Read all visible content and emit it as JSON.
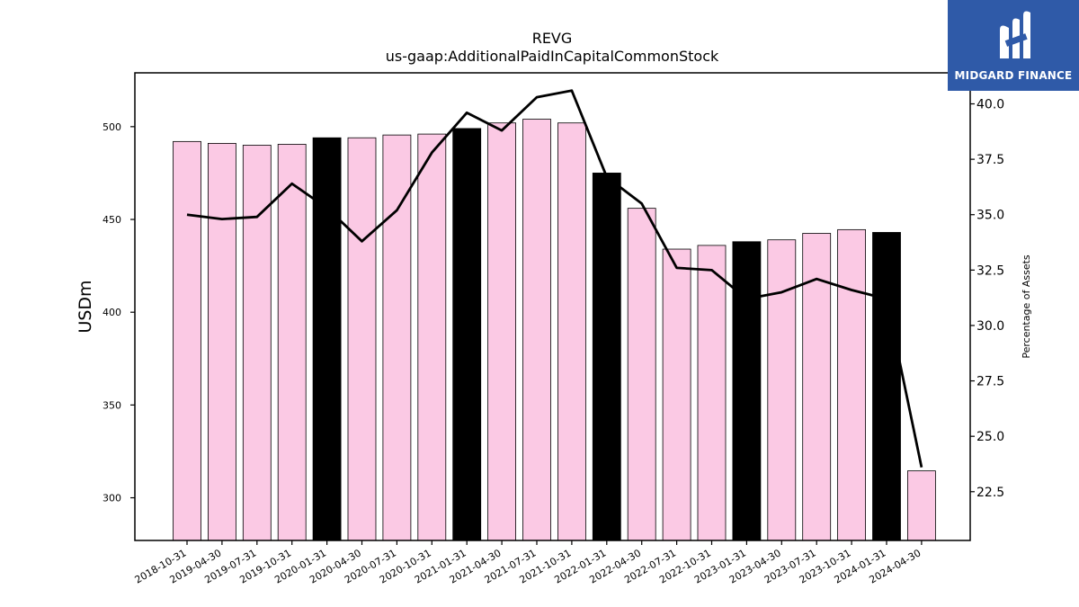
{
  "logo": {
    "text": "MIDGARD FINANCE",
    "background": "#2f5aa8"
  },
  "chart_data": {
    "type": "bar",
    "title": "REVG",
    "subtitle": "us-gaap:AdditionalPaidInCapitalCommonStock",
    "ylabel": "USDm",
    "y2label": "Percentage of Assets",
    "ylim": [
      277,
      529
    ],
    "y2lim": [
      20.3,
      41.4
    ],
    "yticks": [
      300,
      350,
      400,
      450,
      500
    ],
    "y2ticks": [
      22.5,
      25.0,
      27.5,
      30.0,
      32.5,
      35.0,
      37.5,
      40.0
    ],
    "categories": [
      "2018-10-31",
      "2019-04-30",
      "2019-07-31",
      "2019-10-31",
      "2020-01-31",
      "2020-04-30",
      "2020-07-31",
      "2020-10-31",
      "2021-01-31",
      "2021-04-30",
      "2021-07-31",
      "2021-10-31",
      "2022-01-31",
      "2022-04-30",
      "2022-07-31",
      "2022-10-31",
      "2023-01-31",
      "2023-04-30",
      "2023-07-31",
      "2023-10-31",
      "2024-01-31",
      "2024-04-30"
    ],
    "series": [
      {
        "values": [
          492,
          491,
          490,
          490.5,
          494,
          494,
          495.5,
          496,
          499,
          502,
          504,
          502,
          475,
          456,
          434,
          436,
          438,
          439,
          442.5,
          444.5,
          443,
          314.5
        ]
      },
      {
        "values": [
          35.0,
          34.8,
          34.9,
          36.4,
          35.3,
          33.8,
          35.2,
          37.8,
          39.6,
          38.8,
          40.3,
          40.6,
          36.7,
          35.5,
          32.6,
          32.5,
          31.2,
          31.5,
          32.1,
          31.6,
          31.2,
          23.6
        ]
      }
    ],
    "bar_colors": {
      "default": "#fbc9e4",
      "highlight": "#000000"
    },
    "highlight_categories": [
      "2020-01-31",
      "2021-01-31",
      "2022-01-31",
      "2023-01-31",
      "2024-01-31"
    ],
    "line_color": "#000000",
    "grid": false
  }
}
